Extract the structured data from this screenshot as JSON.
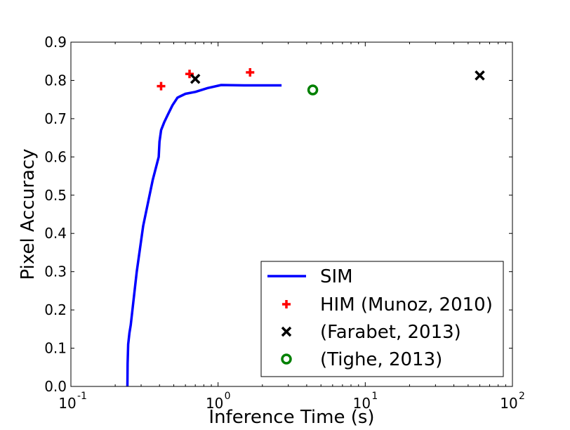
{
  "chart_data": {
    "type": "line",
    "xlabel": "Inference Time (s)",
    "ylabel": "Pixel Accuracy",
    "xscale": "log",
    "xlim": [
      0.1,
      100
    ],
    "ylim": [
      0.0,
      0.9
    ],
    "x_ticks": [
      {
        "value": 0.1,
        "base": "10",
        "exp": "-1"
      },
      {
        "value": 1,
        "base": "10",
        "exp": "0"
      },
      {
        "value": 10,
        "base": "10",
        "exp": "1"
      },
      {
        "value": 100,
        "base": "10",
        "exp": "2"
      }
    ],
    "y_ticks": [
      "0.0",
      "0.1",
      "0.2",
      "0.3",
      "0.4",
      "0.5",
      "0.6",
      "0.7",
      "0.8",
      "0.9"
    ],
    "grid": false,
    "legend_position": "lower-right",
    "series": [
      {
        "name": "SIM",
        "kind": "line",
        "color": "#0000ff",
        "points": [
          [
            0.242,
            0.0
          ],
          [
            0.243,
            0.06
          ],
          [
            0.245,
            0.11
          ],
          [
            0.25,
            0.14
          ],
          [
            0.255,
            0.16
          ],
          [
            0.28,
            0.3
          ],
          [
            0.31,
            0.42
          ],
          [
            0.36,
            0.54
          ],
          [
            0.395,
            0.6
          ],
          [
            0.4,
            0.64
          ],
          [
            0.41,
            0.67
          ],
          [
            0.43,
            0.69
          ],
          [
            0.455,
            0.71
          ],
          [
            0.49,
            0.735
          ],
          [
            0.53,
            0.755
          ],
          [
            0.6,
            0.765
          ],
          [
            0.7,
            0.77
          ],
          [
            0.85,
            0.78
          ],
          [
            1.05,
            0.788
          ],
          [
            1.5,
            0.787
          ],
          [
            2.0,
            0.787
          ],
          [
            2.7,
            0.787
          ]
        ]
      },
      {
        "name": "HIM (Munoz, 2010)",
        "kind": "marker",
        "marker": "plus",
        "color": "#ff0000",
        "points": [
          [
            0.41,
            0.785
          ],
          [
            0.64,
            0.817
          ],
          [
            1.65,
            0.821
          ]
        ]
      },
      {
        "name": "(Farabet, 2013)",
        "kind": "marker",
        "marker": "x",
        "color": "#000000",
        "points": [
          [
            0.7,
            0.804
          ],
          [
            60,
            0.813
          ]
        ]
      },
      {
        "name": "(Tighe, 2013)",
        "kind": "marker",
        "marker": "circle",
        "color": "#008000",
        "points": [
          [
            4.4,
            0.775
          ]
        ]
      }
    ]
  }
}
